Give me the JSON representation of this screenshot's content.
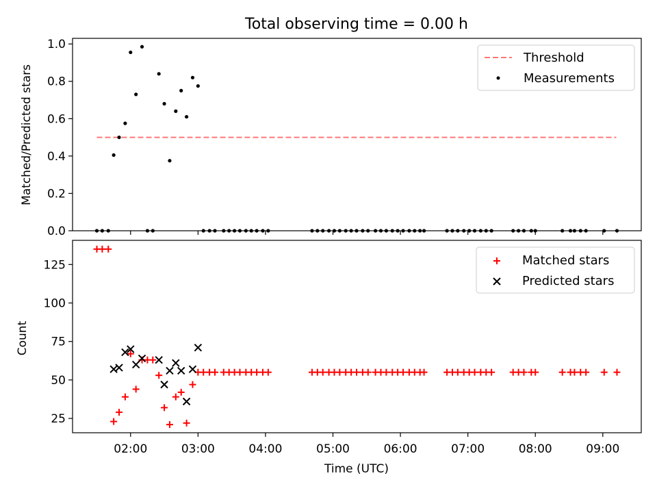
{
  "figure_title": "Total observing time = 0.00 h",
  "chart_data": [
    {
      "type": "scatter",
      "panel": "top",
      "ylabel": "Matched/Predicted stars",
      "ylim": [
        0,
        1.03
      ],
      "yticks": [
        "0.0",
        "0.2",
        "0.4",
        "0.6",
        "0.8",
        "1.0"
      ],
      "ytick_values": [
        0.0,
        0.2,
        0.4,
        0.6,
        0.8,
        1.0
      ],
      "xlim_hours": [
        1.14,
        9.57
      ],
      "grid": false,
      "legend_position": "top-right",
      "threshold": {
        "name": "Threshold",
        "color": "#ff7777",
        "y": 0.5,
        "x_start": 1.5,
        "x_end": 9.2
      },
      "measurements": {
        "name": "Measurements",
        "color": "#000000",
        "points": [
          [
            1.5,
            0.0
          ],
          [
            1.58,
            0.0
          ],
          [
            1.67,
            0.0
          ],
          [
            1.75,
            0.405
          ],
          [
            1.83,
            0.5
          ],
          [
            1.92,
            0.575
          ],
          [
            2.0,
            0.955
          ],
          [
            2.08,
            0.73
          ],
          [
            2.17,
            0.985
          ],
          [
            2.25,
            0.0
          ],
          [
            2.33,
            0.0
          ],
          [
            2.42,
            0.84
          ],
          [
            2.5,
            0.68
          ],
          [
            2.58,
            0.375
          ],
          [
            2.67,
            0.64
          ],
          [
            2.75,
            0.75
          ],
          [
            2.83,
            0.61
          ],
          [
            2.92,
            0.82
          ],
          [
            3.0,
            0.775
          ],
          [
            3.08,
            0.0
          ],
          [
            3.17,
            0.0
          ],
          [
            3.25,
            0.0
          ],
          [
            3.38,
            0.0
          ],
          [
            3.46,
            0.0
          ],
          [
            3.54,
            0.0
          ],
          [
            3.62,
            0.0
          ],
          [
            3.71,
            0.0
          ],
          [
            3.79,
            0.0
          ],
          [
            3.87,
            0.0
          ],
          [
            3.96,
            0.0
          ],
          [
            4.04,
            0.0
          ],
          [
            4.69,
            0.0
          ],
          [
            4.77,
            0.0
          ],
          [
            4.85,
            0.0
          ],
          [
            4.94,
            0.0
          ],
          [
            5.02,
            0.0
          ],
          [
            5.1,
            0.0
          ],
          [
            5.19,
            0.0
          ],
          [
            5.27,
            0.0
          ],
          [
            5.35,
            0.0
          ],
          [
            5.44,
            0.0
          ],
          [
            5.52,
            0.0
          ],
          [
            5.63,
            0.0
          ],
          [
            5.71,
            0.0
          ],
          [
            5.79,
            0.0
          ],
          [
            5.88,
            0.0
          ],
          [
            5.96,
            0.0
          ],
          [
            6.04,
            0.0
          ],
          [
            6.13,
            0.0
          ],
          [
            6.21,
            0.0
          ],
          [
            6.29,
            0.0
          ],
          [
            6.35,
            0.0
          ],
          [
            6.69,
            0.0
          ],
          [
            6.77,
            0.0
          ],
          [
            6.85,
            0.0
          ],
          [
            6.94,
            0.0
          ],
          [
            7.02,
            0.0
          ],
          [
            7.1,
            0.0
          ],
          [
            7.19,
            0.0
          ],
          [
            7.27,
            0.0
          ],
          [
            7.35,
            0.0
          ],
          [
            7.67,
            0.0
          ],
          [
            7.75,
            0.0
          ],
          [
            7.83,
            0.0
          ],
          [
            7.94,
            0.0
          ],
          [
            8.0,
            0.0
          ],
          [
            8.4,
            0.0
          ],
          [
            8.52,
            0.0
          ],
          [
            8.58,
            0.0
          ],
          [
            8.67,
            0.0
          ],
          [
            8.75,
            0.0
          ],
          [
            9.02,
            0.0
          ],
          [
            9.21,
            0.0
          ]
        ]
      }
    },
    {
      "type": "scatter",
      "panel": "bottom",
      "ylabel": "Count",
      "xlabel": "Time (UTC)",
      "ylim": [
        15.7,
        140.7
      ],
      "yticks": [
        "25",
        "50",
        "75",
        "100",
        "125"
      ],
      "ytick_values": [
        25,
        50,
        75,
        100,
        125
      ],
      "xticks": [
        "02:00",
        "03:00",
        "04:00",
        "05:00",
        "06:00",
        "07:00",
        "08:00",
        "09:00"
      ],
      "xtick_values": [
        2,
        3,
        4,
        5,
        6,
        7,
        8,
        9
      ],
      "xlim_hours": [
        1.14,
        9.57
      ],
      "grid": false,
      "legend_position": "top-right",
      "series": [
        {
          "name": "Matched stars",
          "marker": "plus",
          "color": "#ff0000",
          "points": [
            [
              1.5,
              135
            ],
            [
              1.58,
              135
            ],
            [
              1.67,
              135
            ],
            [
              1.75,
              23
            ],
            [
              1.83,
              29
            ],
            [
              1.92,
              39
            ],
            [
              2.0,
              67
            ],
            [
              2.08,
              44
            ],
            [
              2.17,
              63
            ],
            [
              2.25,
              63
            ],
            [
              2.33,
              63
            ],
            [
              2.42,
              53
            ],
            [
              2.5,
              32
            ],
            [
              2.58,
              21
            ],
            [
              2.67,
              39
            ],
            [
              2.75,
              42
            ],
            [
              2.83,
              22
            ],
            [
              2.92,
              47
            ],
            [
              3.0,
              55
            ],
            [
              3.08,
              55
            ],
            [
              3.17,
              55
            ],
            [
              3.25,
              55
            ],
            [
              3.38,
              55
            ],
            [
              3.46,
              55
            ],
            [
              3.54,
              55
            ],
            [
              3.62,
              55
            ],
            [
              3.71,
              55
            ],
            [
              3.79,
              55
            ],
            [
              3.87,
              55
            ],
            [
              3.96,
              55
            ],
            [
              4.04,
              55
            ],
            [
              4.69,
              55
            ],
            [
              4.77,
              55
            ],
            [
              4.85,
              55
            ],
            [
              4.94,
              55
            ],
            [
              5.02,
              55
            ],
            [
              5.1,
              55
            ],
            [
              5.19,
              55
            ],
            [
              5.27,
              55
            ],
            [
              5.35,
              55
            ],
            [
              5.44,
              55
            ],
            [
              5.52,
              55
            ],
            [
              5.63,
              55
            ],
            [
              5.71,
              55
            ],
            [
              5.79,
              55
            ],
            [
              5.88,
              55
            ],
            [
              5.96,
              55
            ],
            [
              6.04,
              55
            ],
            [
              6.13,
              55
            ],
            [
              6.21,
              55
            ],
            [
              6.29,
              55
            ],
            [
              6.35,
              55
            ],
            [
              6.69,
              55
            ],
            [
              6.77,
              55
            ],
            [
              6.85,
              55
            ],
            [
              6.94,
              55
            ],
            [
              7.02,
              55
            ],
            [
              7.1,
              55
            ],
            [
              7.19,
              55
            ],
            [
              7.27,
              55
            ],
            [
              7.35,
              55
            ],
            [
              7.67,
              55
            ],
            [
              7.75,
              55
            ],
            [
              7.83,
              55
            ],
            [
              7.94,
              55
            ],
            [
              8.0,
              55
            ],
            [
              8.4,
              55
            ],
            [
              8.52,
              55
            ],
            [
              8.58,
              55
            ],
            [
              8.67,
              55
            ],
            [
              8.75,
              55
            ],
            [
              9.02,
              55
            ],
            [
              9.21,
              55
            ]
          ]
        },
        {
          "name": "Predicted stars",
          "marker": "x",
          "color": "#000000",
          "points": [
            [
              1.75,
              57
            ],
            [
              1.83,
              58
            ],
            [
              1.92,
              68
            ],
            [
              2.0,
              70
            ],
            [
              2.08,
              60
            ],
            [
              2.17,
              64
            ],
            [
              2.42,
              63
            ],
            [
              2.5,
              47
            ],
            [
              2.58,
              56
            ],
            [
              2.67,
              61
            ],
            [
              2.75,
              56
            ],
            [
              2.83,
              36
            ],
            [
              2.92,
              57
            ],
            [
              3.0,
              71
            ]
          ]
        }
      ]
    }
  ]
}
